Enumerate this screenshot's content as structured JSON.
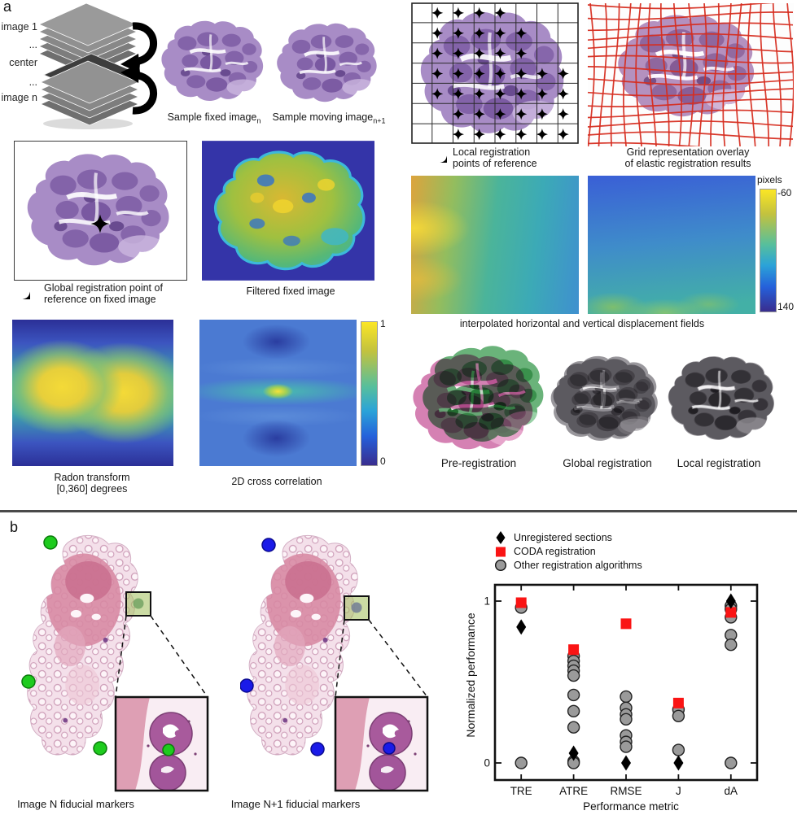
{
  "panel_a": {
    "label": "a",
    "stack": {
      "labels": [
        "image 1",
        "...",
        "center",
        "...",
        "image n"
      ]
    },
    "sample_fixed": {
      "caption": "Sample fixed image",
      "sub": "n"
    },
    "sample_moving": {
      "caption": "Sample moving image",
      "sub": "n+1"
    },
    "local_grid": {
      "caption_line1": "Local registration",
      "caption_line2": "points of reference",
      "star_mask": [
        "1111000",
        "1111100",
        "1111100",
        "1111111",
        "1111111",
        "0111111",
        "0111111"
      ]
    },
    "elastic_grid": {
      "caption_line1": "Grid representation overlay",
      "caption_line2": "of elastic registration results",
      "grid_color": "#d62d20"
    },
    "global_point": {
      "caption_line1": "Global registration point of",
      "caption_line2": "reference on fixed image"
    },
    "filtered": {
      "caption": "Filtered fixed image"
    },
    "radon": {
      "caption_line1": "Radon transform",
      "caption_line2": "[0,360] degrees"
    },
    "xcorr": {
      "caption": "2D cross correlation",
      "cbar_top": "1",
      "cbar_bottom": "0"
    },
    "displacement": {
      "caption": "interpolated horizontal and vertical displacement fields",
      "cbar_label": "pixels",
      "cbar_top": "-60",
      "cbar_bottom": "140"
    },
    "overlays": [
      {
        "caption": "Pre-registration"
      },
      {
        "caption": "Global registration"
      },
      {
        "caption": "Local registration"
      }
    ]
  },
  "panel_b": {
    "label": "b",
    "image_n": {
      "caption": "Image N fiducial markers",
      "marker_color": "#1ecb1e"
    },
    "image_n1": {
      "caption": "Image N+1 fiducial markers",
      "marker_color": "#1a1ae8"
    }
  },
  "chart_data": {
    "type": "scatter",
    "xlabel": "Performance metric",
    "ylabel": "Normalized performance",
    "categories": [
      "TRE",
      "ATRE",
      "RMSE",
      "J",
      "dA"
    ],
    "ylim": [
      0,
      1
    ],
    "yticks": [
      0,
      1
    ],
    "grid": false,
    "legend_position": "above-top-left",
    "series": [
      {
        "name": "Unregistered sections",
        "marker": "diamond",
        "color": "#000000",
        "values": {
          "TRE": [
            0.84
          ],
          "ATRE": [
            0.06
          ],
          "RMSE": [
            0
          ],
          "J": [
            0
          ],
          "dA": [
            1.0
          ]
        }
      },
      {
        "name": "CODA registration",
        "marker": "square",
        "color": "#fa1414",
        "values": {
          "TRE": [
            0.99
          ],
          "ATRE": [
            0.7
          ],
          "RMSE": [
            0.86
          ],
          "J": [
            0.37
          ],
          "dA": [
            0.93
          ]
        }
      },
      {
        "name": "Other registration algorithms",
        "marker": "circle",
        "color": "#9a9a9a",
        "values": {
          "TRE": [
            0.96,
            0
          ],
          "ATRE": [
            0.66,
            0.63,
            0.6,
            0.57,
            0.54,
            0.42,
            0.32,
            0.22,
            0.01,
            0
          ],
          "RMSE": [
            0.41,
            0.34,
            0.3,
            0.27,
            0.17,
            0.13,
            0.1
          ],
          "J": [
            0.33,
            0.29,
            0.08
          ],
          "dA": [
            0.97,
            0.95,
            0.9,
            0.79,
            0.73,
            0
          ]
        }
      }
    ]
  }
}
